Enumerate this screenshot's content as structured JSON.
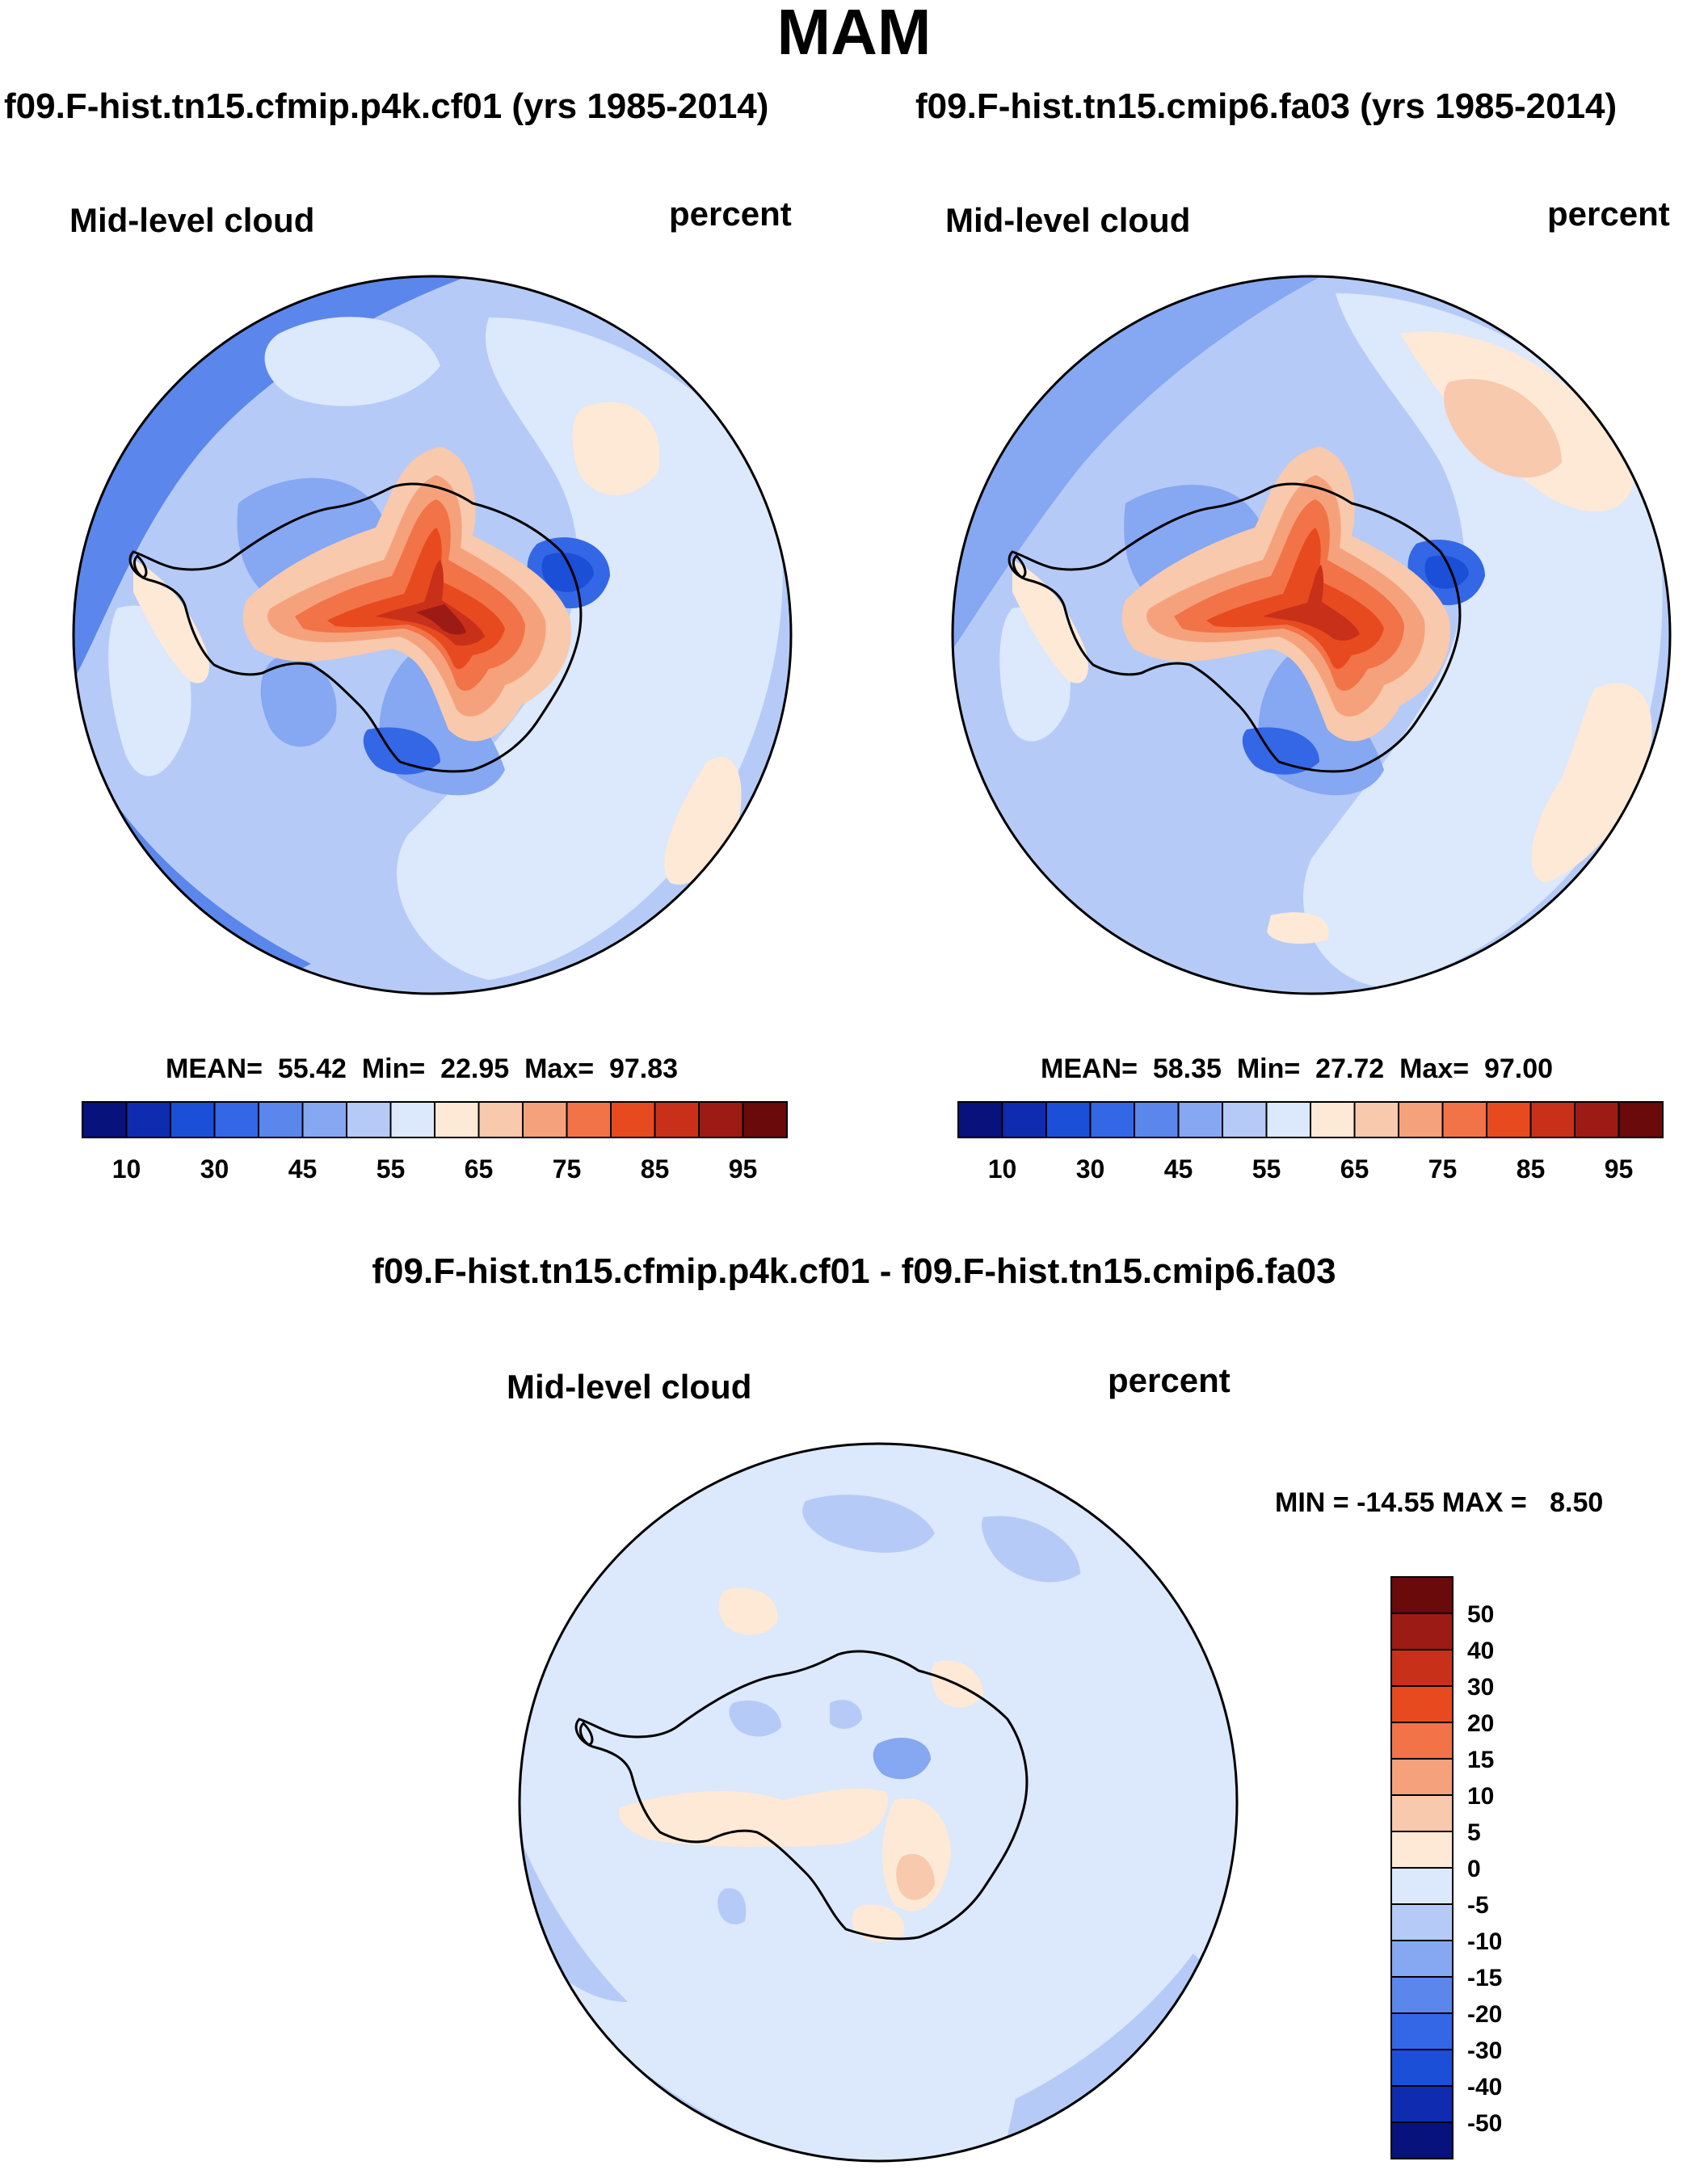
{
  "season": "MAM",
  "panels": [
    {
      "case_title": "f09.F-hist.tn15.cfmip.p4k.cf01 (yrs 1985-2014)",
      "variable": "Mid-level cloud",
      "units": "percent",
      "stats": "MEAN=  55.42  Min=  22.95  Max=  97.83"
    },
    {
      "case_title": "f09.F-hist.tn15.cmip6.fa03 (yrs 1985-2014)",
      "variable": "Mid-level cloud",
      "units": "percent",
      "stats": "MEAN=  58.35  Min=  27.72  Max=  97.00"
    }
  ],
  "diff_panel": {
    "title": "f09.F-hist.tn15.cfmip.p4k.cf01 - f09.F-hist.tn15.cmip6.fa03",
    "variable": "Mid-level cloud",
    "units": "percent",
    "stats": "MIN = -14.55 MAX =   8.50"
  },
  "colorbar_abs": {
    "colors": [
      "#08127d",
      "#0f2bb0",
      "#1c4fd8",
      "#3467e6",
      "#5b86ec",
      "#86a7f1",
      "#b5caf7",
      "#dce8fb",
      "#fde9d6",
      "#f8c9ac",
      "#f5a27c",
      "#f27347",
      "#e84a1f",
      "#c9301a",
      "#9c1b14",
      "#6b0a0a"
    ],
    "labels": [
      "10",
      "30",
      "45",
      "55",
      "65",
      "75",
      "85",
      "95"
    ]
  },
  "colorbar_diff": {
    "colors": [
      "#6b0a0a",
      "#9c1b14",
      "#c9301a",
      "#e84a1f",
      "#f27347",
      "#f5a27c",
      "#f8c9ac",
      "#fde9d6",
      "#dce8fb",
      "#b5caf7",
      "#86a7f1",
      "#5b86ec",
      "#3467e6",
      "#1c4fd8",
      "#0f2bb0",
      "#08127d"
    ],
    "labels": [
      "50",
      "40",
      "30",
      "20",
      "15",
      "10",
      "5",
      "0",
      "-5",
      "-10",
      "-15",
      "-20",
      "-30",
      "-40",
      "-50"
    ]
  }
}
